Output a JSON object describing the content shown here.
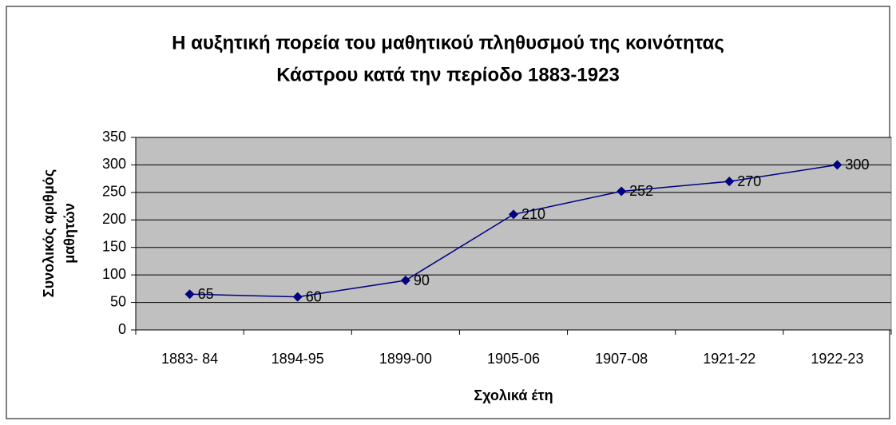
{
  "chart_data": {
    "type": "line",
    "title": [
      "Η αυξητική πορεία του μαθητικού πληθυσμού της κοινότητας",
      "Κάστρου κατά την περίοδο 1883-1923"
    ],
    "x_label": "Σχολικά έτη",
    "y_label": [
      "Συνολικός αριθμός",
      "μαθητών"
    ],
    "categories": [
      "1883- 84",
      "1894-95",
      "1899-00",
      "1905-06",
      "1907-08",
      "1921-22",
      "1922-23"
    ],
    "values": [
      65,
      60,
      90,
      210,
      252,
      270,
      300
    ],
    "color": "#000080",
    "ylim": [
      0,
      350
    ],
    "yticks": [
      0,
      50,
      100,
      150,
      200,
      250,
      300,
      350
    ],
    "grid": true
  }
}
